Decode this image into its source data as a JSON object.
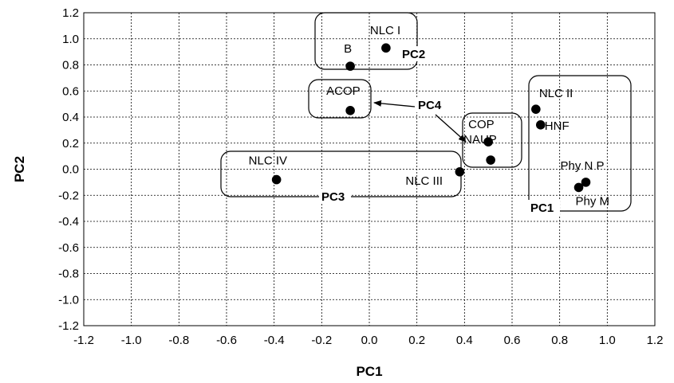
{
  "chart_data": {
    "type": "scatter",
    "xlabel": "PC1",
    "ylabel": "PC2",
    "xlim": [
      -1.2,
      1.2
    ],
    "ylim": [
      -1.2,
      1.2
    ],
    "x_ticks": [
      "-1.2",
      "-1.0",
      "-0.8",
      "-0.6",
      "-0.4",
      "-0.2",
      "0.0",
      "0.2",
      "0.4",
      "0.6",
      "0.8",
      "1.0",
      "1.2"
    ],
    "y_ticks": [
      "1.2",
      "1.0",
      "0.8",
      "0.6",
      "0.4",
      "0.2",
      "0.0",
      "-0.2",
      "-0.4",
      "-0.6",
      "-0.8",
      "-1.0",
      "-1.2"
    ],
    "grid": true,
    "points": [
      {
        "label": "NLC I",
        "x": 0.07,
        "y": 0.93
      },
      {
        "label": "B",
        "x": -0.08,
        "y": 0.79
      },
      {
        "label": "ACOP",
        "x": -0.08,
        "y": 0.45
      },
      {
        "label": "COP",
        "x": 0.5,
        "y": 0.21
      },
      {
        "label": "NAUP",
        "x": 0.51,
        "y": 0.07
      },
      {
        "label": "NLC IV",
        "x": -0.39,
        "y": -0.08
      },
      {
        "label": "NLC III",
        "x": 0.38,
        "y": -0.02
      },
      {
        "label": "NLC II",
        "x": 0.7,
        "y": 0.46
      },
      {
        "label": "HNF",
        "x": 0.72,
        "y": 0.34
      },
      {
        "label": "Phy N P",
        "x": 0.91,
        "y": -0.1
      },
      {
        "label": "Phy M",
        "x": 0.88,
        "y": -0.14
      }
    ],
    "groups": [
      "PC1",
      "PC2",
      "PC3",
      "PC4"
    ]
  }
}
